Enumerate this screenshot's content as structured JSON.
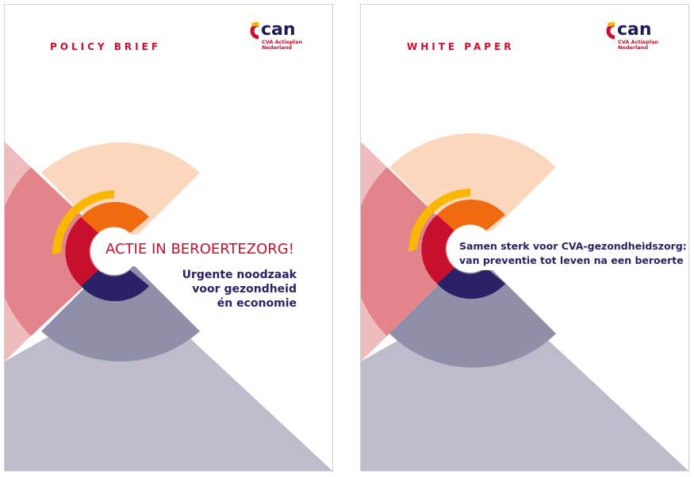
{
  "covers": [
    {
      "kicker": "POLICY BRIEF",
      "logo": {
        "word": "can",
        "line1": "CVA Actieplan",
        "line2": "Nederland"
      },
      "title": "ACTIE IN BEROERTEZORG!",
      "subtitle_lines": [
        "Urgente noodzaak",
        "voor gezondheid",
        "én economie"
      ]
    },
    {
      "kicker": "WHITE PAPER",
      "logo": {
        "word": "can",
        "line1": "CVA Actieplan",
        "line2": "Nederland"
      },
      "title_lines": [
        "Samen sterk voor CVA-gezondheidszorg:",
        "van preventie tot leven na een beroerte"
      ]
    }
  ],
  "colors": {
    "brand_red": "#c8102e",
    "navy": "#2b2166",
    "orange": "#f06a10",
    "yellow": "#fbb600",
    "peach": "#fbd8bd",
    "pink": "#e3838b",
    "grey_blue": "#8f8fa9",
    "lavender": "#bebcca"
  }
}
